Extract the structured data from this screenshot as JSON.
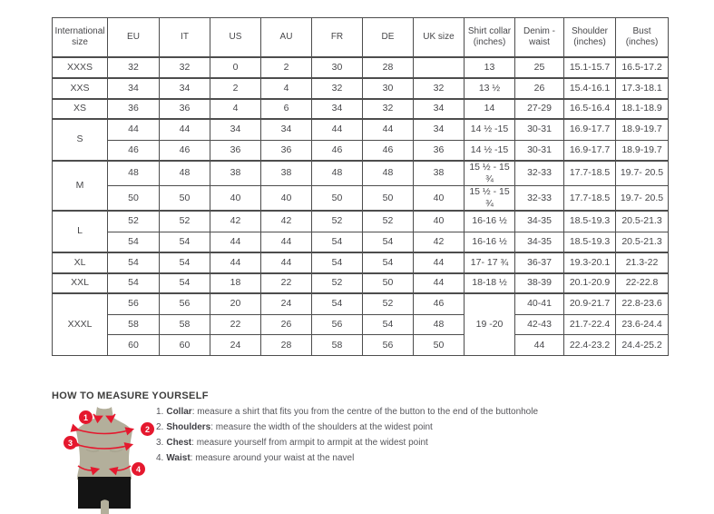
{
  "colors": {
    "accent_red": "#e5182e",
    "torso_tan": "#b3af9b",
    "shorts_black": "#141414",
    "table_border": "#4d4d4d",
    "text": "#47474a"
  },
  "table": {
    "headers": [
      "International size",
      "EU",
      "IT",
      "US",
      "AU",
      "FR",
      "DE",
      "UK size",
      "Shirt collar (inches)",
      "Denim - waist",
      "Shoulder (inches)",
      "Bust (inches)"
    ],
    "rows": [
      [
        "XXXS",
        "32",
        "32",
        "0",
        "2",
        "30",
        "28",
        "",
        "13",
        "25",
        "15.1-15.7",
        "16.5-17.2"
      ],
      [
        "XXS",
        "34",
        "34",
        "2",
        "4",
        "32",
        "30",
        "32",
        "13 ½",
        "26",
        "15.4-16.1",
        "17.3-18.1"
      ],
      [
        "XS",
        "36",
        "36",
        "4",
        "6",
        "34",
        "32",
        "34",
        "14",
        "27-29",
        "16.5-16.4",
        "18.1-18.9"
      ],
      [
        {
          "t": "S",
          "rs": 2
        },
        "44",
        "44",
        "34",
        "34",
        "44",
        "44",
        "34",
        "14 ½ -15",
        "30-31",
        "16.9-17.7",
        "18.9-19.7"
      ],
      [
        "46",
        "46",
        "36",
        "36",
        "46",
        "46",
        "36",
        "14 ½ -15",
        "30-31",
        "16.9-17.7",
        "18.9-19.7"
      ],
      [
        {
          "t": "M",
          "rs": 2
        },
        "48",
        "48",
        "38",
        "38",
        "48",
        "48",
        "38",
        "15 ½ - 15 ¾",
        "32-33",
        "17.7-18.5",
        "19.7- 20.5"
      ],
      [
        "50",
        "50",
        "40",
        "40",
        "50",
        "50",
        "40",
        "15 ½ - 15 ¾",
        "32-33",
        "17.7-18.5",
        "19.7- 20.5"
      ],
      [
        {
          "t": "L",
          "rs": 2
        },
        "52",
        "52",
        "42",
        "42",
        "52",
        "52",
        "40",
        "16-16 ½",
        "34-35",
        "18.5-19.3",
        "20.5-21.3"
      ],
      [
        "54",
        "54",
        "44",
        "44",
        "54",
        "54",
        "42",
        "16-16 ½",
        "34-35",
        "18.5-19.3",
        "20.5-21.3"
      ],
      [
        "XL",
        "54",
        "54",
        "44",
        "44",
        "54",
        "54",
        "44",
        "17- 17 ¾",
        "36-37",
        "19.3-20.1",
        "21.3-22"
      ],
      [
        "XXL",
        "54",
        "54",
        "18",
        "22",
        "52",
        "50",
        "44",
        "18-18 ½",
        "38-39",
        "20.1-20.9",
        "22-22.8"
      ],
      [
        {
          "t": "XXXL",
          "rs": 3
        },
        "56",
        "56",
        "20",
        "24",
        "54",
        "52",
        "46",
        {
          "t": "19 -20",
          "rs": 3
        },
        "40-41",
        "20.9-21.7",
        "22.8-23.6"
      ],
      [
        "58",
        "58",
        "22",
        "26",
        "56",
        "54",
        "48",
        "42-43",
        "21.7-22.4",
        "23.6-24.4"
      ],
      [
        "60",
        "60",
        "24",
        "28",
        "58",
        "56",
        "50",
        "44",
        "22.4-23.2",
        "24.4-25.2"
      ]
    ]
  },
  "measure": {
    "title": "HOW TO MEASURE YOURSELF",
    "figure": {
      "badges": [
        "1",
        "2",
        "3",
        "4"
      ]
    },
    "items": [
      {
        "num": "1.",
        "term": "Collar",
        "rest": ": measure a shirt that fits you from the centre of the button to the end of the buttonhole"
      },
      {
        "num": "2.",
        "term": "Shoulders",
        "rest": ": measure the width of the shoulders at the widest point"
      },
      {
        "num": "3.",
        "term": "Chest",
        "rest": ": measure yourself from armpit to armpit at the widest point"
      },
      {
        "num": "4.",
        "term": "Waist",
        "rest": ": measure around your waist at the navel"
      }
    ]
  }
}
